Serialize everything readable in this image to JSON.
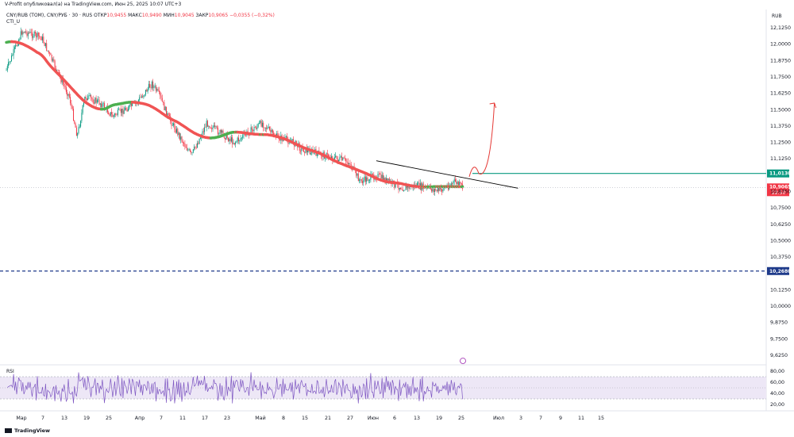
{
  "publisher_line": "V-Profit опубликовал(а) на TradingView.com, Июн 25, 2025 10:07 UTC+3",
  "symbol_line": {
    "symbol": "CNY/RUB (TOM), CNY/РУБ · 30 · RUS",
    "open_label": "ОТКР",
    "open": "10,9455",
    "high_label": "МАКС",
    "high": "10,9490",
    "low_label": "МИН",
    "low": "10,9045",
    "close_label": "ЗАКР",
    "close": "10,9065",
    "change": "−0,0355 (−0,32%)"
  },
  "indicator_name": "CTI_U",
  "currency": "RUB",
  "rsi_label": "RSI",
  "brand": "TradingView",
  "price_axis": {
    "ticks": [
      "12,1250",
      "12,0000",
      "11,8750",
      "11,7500",
      "11,6250",
      "11,5000",
      "11,3750",
      "11,2500",
      "11,1250",
      "10,8750",
      "10,7500",
      "10,6250",
      "10,5000",
      "10,3750",
      "10,1250",
      "10,0000",
      "9,8750",
      "9,7500",
      "9,6250"
    ],
    "tick_values": [
      12.125,
      12.0,
      11.875,
      11.75,
      11.625,
      11.5,
      11.375,
      11.25,
      11.125,
      10.875,
      10.75,
      10.625,
      10.5,
      10.375,
      10.125,
      10.0,
      9.875,
      9.75,
      9.625
    ]
  },
  "rsi_axis": {
    "ticks": [
      "80,00",
      "60,00",
      "40,00",
      "20,00"
    ],
    "tick_values": [
      80,
      60,
      40,
      20
    ]
  },
  "time_axis": [
    "Мар",
    "7",
    "13",
    "19",
    "25",
    "Апр",
    "7",
    "11",
    "17",
    "23",
    "Май",
    "8",
    "15",
    "21",
    "27",
    "Июн",
    "6",
    "13",
    "19",
    "25",
    "Июл",
    "3",
    "7",
    "9",
    "11",
    "15"
  ],
  "colors": {
    "up": "#089981",
    "down": "#f23645",
    "ma_up": "#4caf50",
    "ma_down": "#f05454",
    "resistance": "#089981",
    "support": "#1e3a8a",
    "trendline": "#000000",
    "projection": "#e53935",
    "rsi": "#7e57c2",
    "rsi_band": "#ede7f6"
  },
  "chart_data": {
    "type": "candlestick",
    "timeframe": "30",
    "period": "2025-03 to 2025-06-25",
    "approx_close_path": [
      {
        "date": "2025-03-01",
        "close": 11.8
      },
      {
        "date": "2025-03-05",
        "close": 12.1
      },
      {
        "date": "2025-03-10",
        "close": 12.05
      },
      {
        "date": "2025-03-13",
        "close": 11.85
      },
      {
        "date": "2025-03-17",
        "close": 11.6
      },
      {
        "date": "2025-03-19",
        "close": 11.3
      },
      {
        "date": "2025-03-21",
        "close": 11.6
      },
      {
        "date": "2025-03-25",
        "close": 11.55
      },
      {
        "date": "2025-03-28",
        "close": 11.45
      },
      {
        "date": "2025-04-03",
        "close": 11.55
      },
      {
        "date": "2025-04-07",
        "close": 11.7
      },
      {
        "date": "2025-04-09",
        "close": 11.6
      },
      {
        "date": "2025-04-11",
        "close": 11.45
      },
      {
        "date": "2025-04-14",
        "close": 11.3
      },
      {
        "date": "2025-04-17",
        "close": 11.15
      },
      {
        "date": "2025-04-21",
        "close": 11.4
      },
      {
        "date": "2025-04-23",
        "close": 11.35
      },
      {
        "date": "2025-04-28",
        "close": 11.25
      },
      {
        "date": "2025-05-05",
        "close": 11.4
      },
      {
        "date": "2025-05-08",
        "close": 11.3
      },
      {
        "date": "2025-05-13",
        "close": 11.25
      },
      {
        "date": "2025-05-15",
        "close": 11.2
      },
      {
        "date": "2025-05-21",
        "close": 11.15
      },
      {
        "date": "2025-05-27",
        "close": 11.1
      },
      {
        "date": "2025-05-30",
        "close": 10.95
      },
      {
        "date": "2025-06-03",
        "close": 11.0
      },
      {
        "date": "2025-06-06",
        "close": 10.95
      },
      {
        "date": "2025-06-10",
        "close": 10.9
      },
      {
        "date": "2025-06-13",
        "close": 10.92
      },
      {
        "date": "2025-06-19",
        "close": 10.88
      },
      {
        "date": "2025-06-23",
        "close": 10.95
      },
      {
        "date": "2025-06-25",
        "close": 10.9065
      }
    ],
    "last_price": 10.9065,
    "last_price_label": "10,9065",
    "countdown": "22:50",
    "resistance_level": 11.013,
    "resistance_label": "11,0130",
    "support_level": 10.268,
    "support_label": "10,2680",
    "trendline": {
      "from": {
        "date": "2025-06-03",
        "price": 11.11
      },
      "to": {
        "date": "2025-07-09",
        "price": 10.9
      }
    },
    "projection_arrow": {
      "from": {
        "date": "2025-06-25",
        "price": 11.0
      },
      "to": {
        "date": "2025-07-03",
        "price": 11.55
      }
    },
    "rsi_range": [
      20,
      80
    ],
    "rsi_bands": [
      70,
      30
    ],
    "ylim": [
      9.55,
      12.2
    ],
    "grid": false
  }
}
